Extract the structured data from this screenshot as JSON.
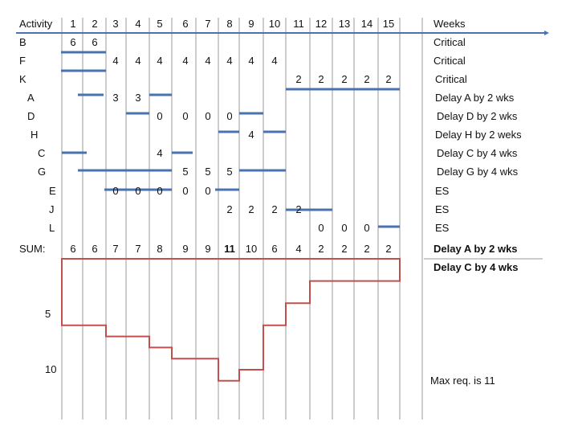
{
  "header": {
    "activity_label": "Activity",
    "weeks": [
      "1",
      "2",
      "3",
      "4",
      "5",
      "6",
      "7",
      "8",
      "9",
      "10",
      "11",
      "12",
      "13",
      "14",
      "15"
    ],
    "weeks_label": "Weeks"
  },
  "rows": [
    {
      "activity": "B",
      "note": "Critical",
      "cells": [
        [
          "1",
          "6"
        ],
        [
          "2",
          "6"
        ]
      ]
    },
    {
      "activity": "F",
      "note": "Critical",
      "cells": [
        [
          "3",
          "4"
        ],
        [
          "4",
          "4"
        ],
        [
          "5",
          "4"
        ],
        [
          "6",
          "4"
        ],
        [
          "7",
          "4"
        ],
        [
          "8",
          "4"
        ],
        [
          "9",
          "4"
        ],
        [
          "10",
          "4"
        ]
      ]
    },
    {
      "activity": "K",
      "note": "Critical",
      "cells": [
        [
          "11",
          "2"
        ],
        [
          "12",
          "2"
        ],
        [
          "13",
          "2"
        ],
        [
          "14",
          "2"
        ],
        [
          "15",
          "2"
        ]
      ]
    },
    {
      "activity": "A",
      "note": "Delay A by 2 wks",
      "cells": [
        [
          "3",
          "3"
        ],
        [
          "4",
          "3"
        ]
      ]
    },
    {
      "activity": "D",
      "note": "Delay D by 2 wks",
      "cells": [
        [
          "5",
          "0"
        ],
        [
          "6",
          "0"
        ],
        [
          "7",
          "0"
        ],
        [
          "8",
          "0"
        ]
      ]
    },
    {
      "activity": "H",
      "note": "Delay H by 2 weks",
      "cells": [
        [
          "9",
          "4"
        ]
      ]
    },
    {
      "activity": "C",
      "note": "Delay C by 4 wks",
      "cells": [
        [
          "5",
          "4"
        ]
      ]
    },
    {
      "activity": "G",
      "note": "Delay G by 4 wks",
      "cells": [
        [
          "6",
          "5"
        ],
        [
          "7",
          "5"
        ],
        [
          "8",
          "5"
        ]
      ]
    },
    {
      "activity": "E",
      "note": "ES",
      "cells": [
        [
          "3",
          "0"
        ],
        [
          "4",
          "0"
        ],
        [
          "5",
          "0"
        ],
        [
          "6",
          "0"
        ],
        [
          "7",
          "0"
        ]
      ]
    },
    {
      "activity": "J",
      "note": "ES",
      "cells": [
        [
          "8",
          "2"
        ],
        [
          "9",
          "2"
        ],
        [
          "10",
          "2"
        ],
        [
          "11",
          "2"
        ]
      ]
    },
    {
      "activity": "L",
      "note": "ES",
      "cells": [
        [
          "12",
          "0"
        ],
        [
          "13",
          "0"
        ],
        [
          "14",
          "0"
        ]
      ]
    }
  ],
  "sum": {
    "label": "SUM:",
    "values": [
      "6",
      "6",
      "7",
      "7",
      "8",
      "9",
      "9",
      "11",
      "10",
      "6",
      "4",
      "2",
      "2",
      "2",
      "2"
    ],
    "bold_index": 7
  },
  "conclusion": [
    "Delay A by 2 wks",
    "Delay C by 4 wks"
  ],
  "resource_axis": {
    "ticks": [
      "5",
      "10"
    ]
  },
  "resource_profile": [
    6,
    6,
    7,
    7,
    8,
    9,
    9,
    11,
    10,
    6,
    4,
    2,
    2,
    2,
    2
  ],
  "max_note": "Max req. is 11",
  "colors": {
    "bar": "#4a72b0",
    "profile": "#c0504d",
    "grid": "#9a9a9a"
  }
}
